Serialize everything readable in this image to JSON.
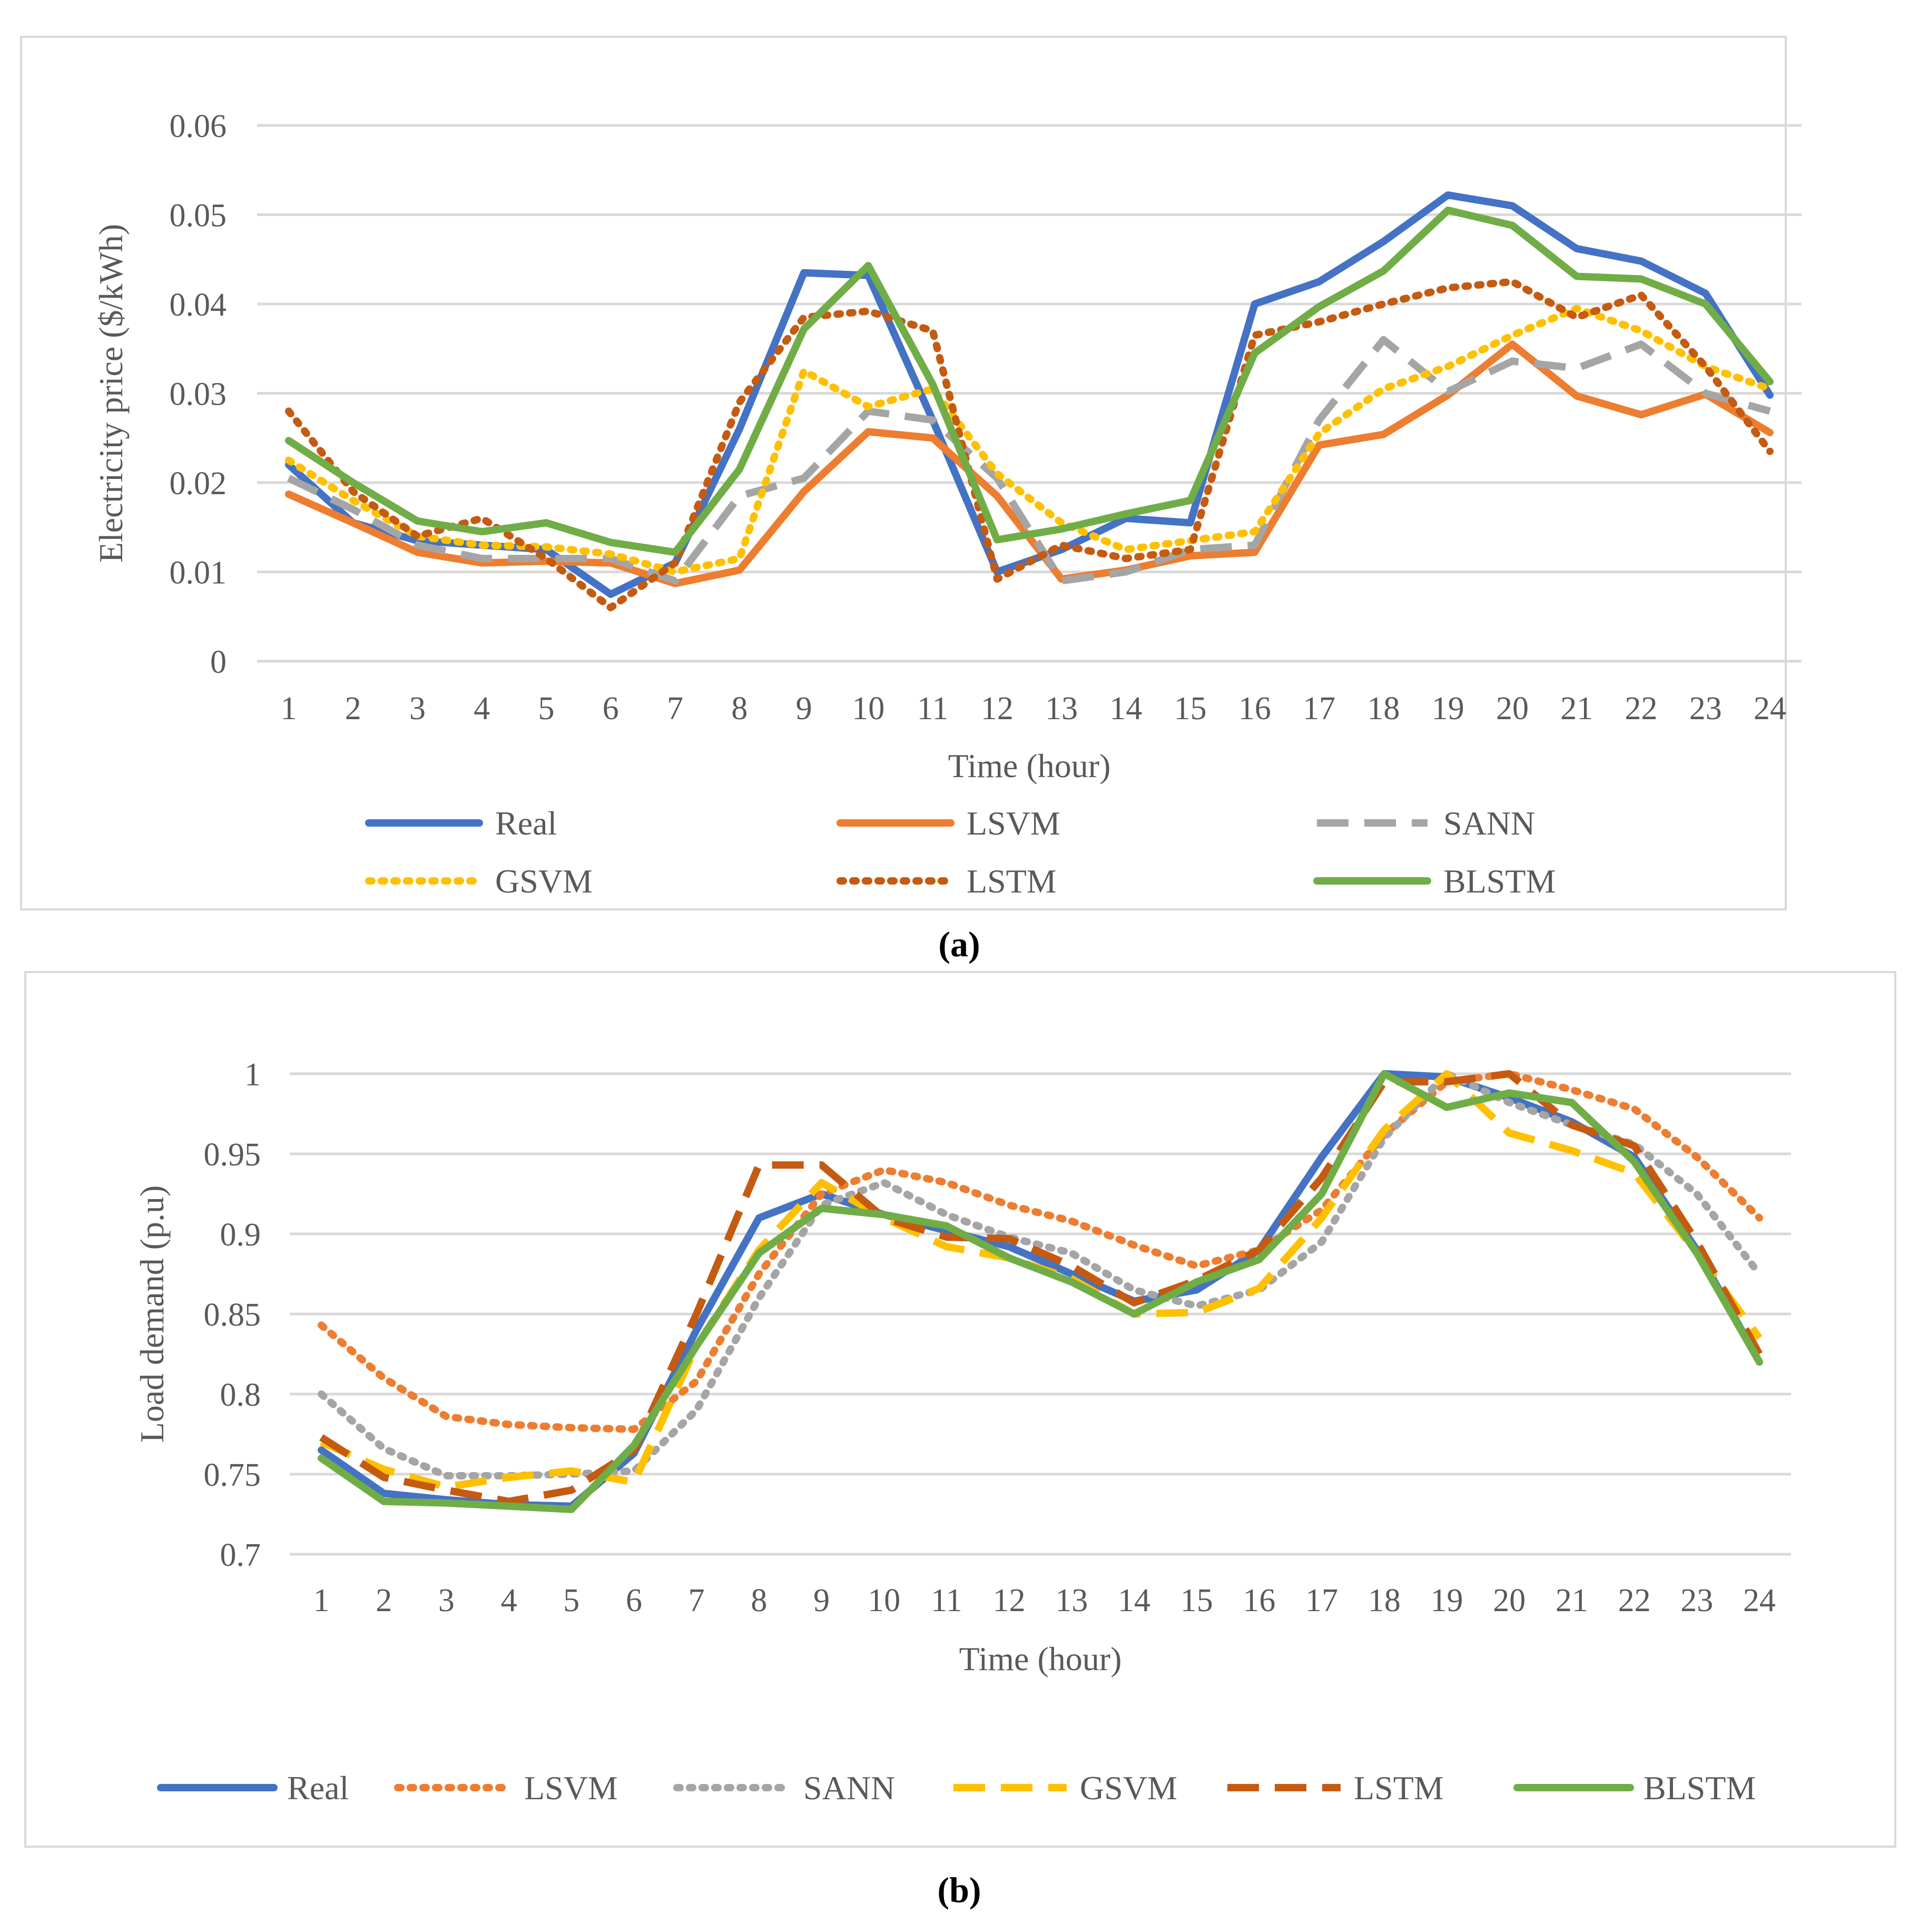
{
  "chart_data": [
    {
      "type": "line",
      "panel_label": "a",
      "title": "",
      "xlabel": "Time (hour)",
      "ylabel": "Electricity price ($/kWh)",
      "ylim": [
        0,
        0.06
      ],
      "yticks": [
        "0",
        "0.01",
        "0.02",
        "0.03",
        "0.04",
        "0.05",
        "0.06"
      ],
      "categories": [
        "1",
        "2",
        "3",
        "4",
        "5",
        "6",
        "7",
        "8",
        "9",
        "10",
        "11",
        "12",
        "13",
        "14",
        "15",
        "16",
        "17",
        "18",
        "19",
        "20",
        "21",
        "22",
        "23",
        "24"
      ],
      "legend_position": "bottom",
      "grid": true,
      "series": [
        {
          "name": "Real",
          "color": "#4472C4",
          "dash": "solid",
          "values": [
            0.022,
            0.0155,
            0.0135,
            0.013,
            0.0125,
            0.0075,
            0.011,
            0.026,
            0.0435,
            0.0432,
            0.027,
            0.01,
            0.0125,
            0.016,
            0.0155,
            0.04,
            0.0425,
            0.047,
            0.0522,
            0.051,
            0.0462,
            0.0448,
            0.0412,
            0.0298
          ]
        },
        {
          "name": "LSVM",
          "color": "#ED7D31",
          "dash": "solid",
          "values": [
            0.0187,
            0.0155,
            0.0122,
            0.011,
            0.0112,
            0.011,
            0.0087,
            0.0102,
            0.019,
            0.0257,
            0.025,
            0.0185,
            0.0092,
            0.0102,
            0.0118,
            0.0122,
            0.0242,
            0.0254,
            0.0298,
            0.0355,
            0.0297,
            0.0276,
            0.0299,
            0.0256
          ]
        },
        {
          "name": "SANN",
          "color": "#A5A5A5",
          "dash": "longdash",
          "values": [
            0.0205,
            0.017,
            0.013,
            0.0115,
            0.0115,
            0.0115,
            0.009,
            0.0185,
            0.0205,
            0.028,
            0.027,
            0.0205,
            0.009,
            0.01,
            0.0125,
            0.013,
            0.027,
            0.036,
            0.0302,
            0.0336,
            0.0328,
            0.0355,
            0.03,
            0.028
          ]
        },
        {
          "name": "GSVM",
          "color": "#FFC000",
          "dash": "dot",
          "values": [
            0.0225,
            0.018,
            0.014,
            0.013,
            0.0128,
            0.012,
            0.01,
            0.0115,
            0.0325,
            0.0285,
            0.0305,
            0.021,
            0.0155,
            0.0125,
            0.0135,
            0.0145,
            0.0255,
            0.0305,
            0.033,
            0.0365,
            0.0395,
            0.037,
            0.033,
            0.0305
          ]
        },
        {
          "name": "LSTM",
          "color": "#C55A11",
          "dash": "dot",
          "values": [
            0.028,
            0.019,
            0.014,
            0.016,
            0.0115,
            0.006,
            0.011,
            0.029,
            0.0385,
            0.0392,
            0.037,
            0.0092,
            0.013,
            0.0115,
            0.0125,
            0.0365,
            0.038,
            0.04,
            0.0418,
            0.0425,
            0.0385,
            0.041,
            0.033,
            0.0235
          ]
        },
        {
          "name": "BLSTM",
          "color": "#70AD47",
          "dash": "solid",
          "values": [
            0.0247,
            0.02,
            0.0157,
            0.0145,
            0.0155,
            0.0133,
            0.0122,
            0.0215,
            0.0372,
            0.0443,
            0.031,
            0.0136,
            0.0148,
            0.0165,
            0.018,
            0.0345,
            0.0397,
            0.0437,
            0.0505,
            0.0488,
            0.0431,
            0.0428,
            0.04,
            0.0313
          ]
        }
      ]
    },
    {
      "type": "line",
      "panel_label": "b",
      "title": "",
      "xlabel": "Time (hour)",
      "ylabel": "Load demand (p.u)",
      "ylim": [
        0.7,
        1.0
      ],
      "yticks": [
        "0.7",
        "0.75",
        "0.8",
        "0.85",
        "0.9",
        "0.95",
        "1"
      ],
      "categories": [
        "1",
        "2",
        "3",
        "4",
        "5",
        "6",
        "7",
        "8",
        "9",
        "10",
        "11",
        "12",
        "13",
        "14",
        "15",
        "16",
        "17",
        "18",
        "19",
        "20",
        "21",
        "22",
        "23",
        "24"
      ],
      "legend_position": "bottom",
      "grid": true,
      "series": [
        {
          "name": "Real",
          "color": "#4472C4",
          "dash": "solid",
          "values": [
            0.765,
            0.738,
            0.734,
            0.731,
            0.73,
            0.763,
            0.84,
            0.91,
            0.925,
            0.912,
            0.902,
            0.892,
            0.875,
            0.858,
            0.865,
            0.89,
            0.948,
            1.0,
            0.998,
            0.985,
            0.97,
            0.948,
            0.89,
            0.82
          ]
        },
        {
          "name": "LSVM",
          "color": "#ED7D31",
          "dash": "dot",
          "values": [
            0.843,
            0.81,
            0.786,
            0.781,
            0.779,
            0.778,
            0.808,
            0.875,
            0.925,
            0.94,
            0.932,
            0.918,
            0.908,
            0.893,
            0.88,
            0.89,
            0.915,
            0.962,
            0.995,
            1.0,
            0.99,
            0.978,
            0.948,
            0.91
          ]
        },
        {
          "name": "SANN",
          "color": "#A5A5A5",
          "dash": "dot",
          "values": [
            0.8,
            0.766,
            0.749,
            0.749,
            0.75,
            0.752,
            0.79,
            0.86,
            0.918,
            0.932,
            0.912,
            0.898,
            0.888,
            0.865,
            0.855,
            0.865,
            0.895,
            0.96,
            1.0,
            0.982,
            0.968,
            0.956,
            0.925,
            0.875
          ]
        },
        {
          "name": "GSVM",
          "color": "#FFC000",
          "dash": "longdash",
          "values": [
            0.77,
            0.753,
            0.742,
            0.748,
            0.752,
            0.745,
            0.83,
            0.89,
            0.932,
            0.91,
            0.892,
            0.885,
            0.872,
            0.85,
            0.851,
            0.866,
            0.91,
            0.965,
            1.0,
            0.963,
            0.952,
            0.938,
            0.888,
            0.835
          ]
        },
        {
          "name": "LSTM",
          "color": "#C55A11",
          "dash": "longdash",
          "values": [
            0.773,
            0.748,
            0.74,
            0.733,
            0.74,
            0.765,
            0.85,
            0.943,
            0.943,
            0.91,
            0.898,
            0.897,
            0.88,
            0.857,
            0.871,
            0.89,
            0.935,
            0.995,
            0.995,
            1.0,
            0.968,
            0.955,
            0.895,
            0.825
          ]
        },
        {
          "name": "BLSTM",
          "color": "#70AD47",
          "dash": "solid",
          "values": [
            0.76,
            0.733,
            0.732,
            0.73,
            0.728,
            0.768,
            0.83,
            0.888,
            0.916,
            0.912,
            0.905,
            0.885,
            0.87,
            0.85,
            0.87,
            0.884,
            0.925,
            1.0,
            0.979,
            0.988,
            0.982,
            0.945,
            0.888,
            0.82
          ]
        }
      ]
    }
  ],
  "captions": [
    "(a)",
    "(b)"
  ]
}
